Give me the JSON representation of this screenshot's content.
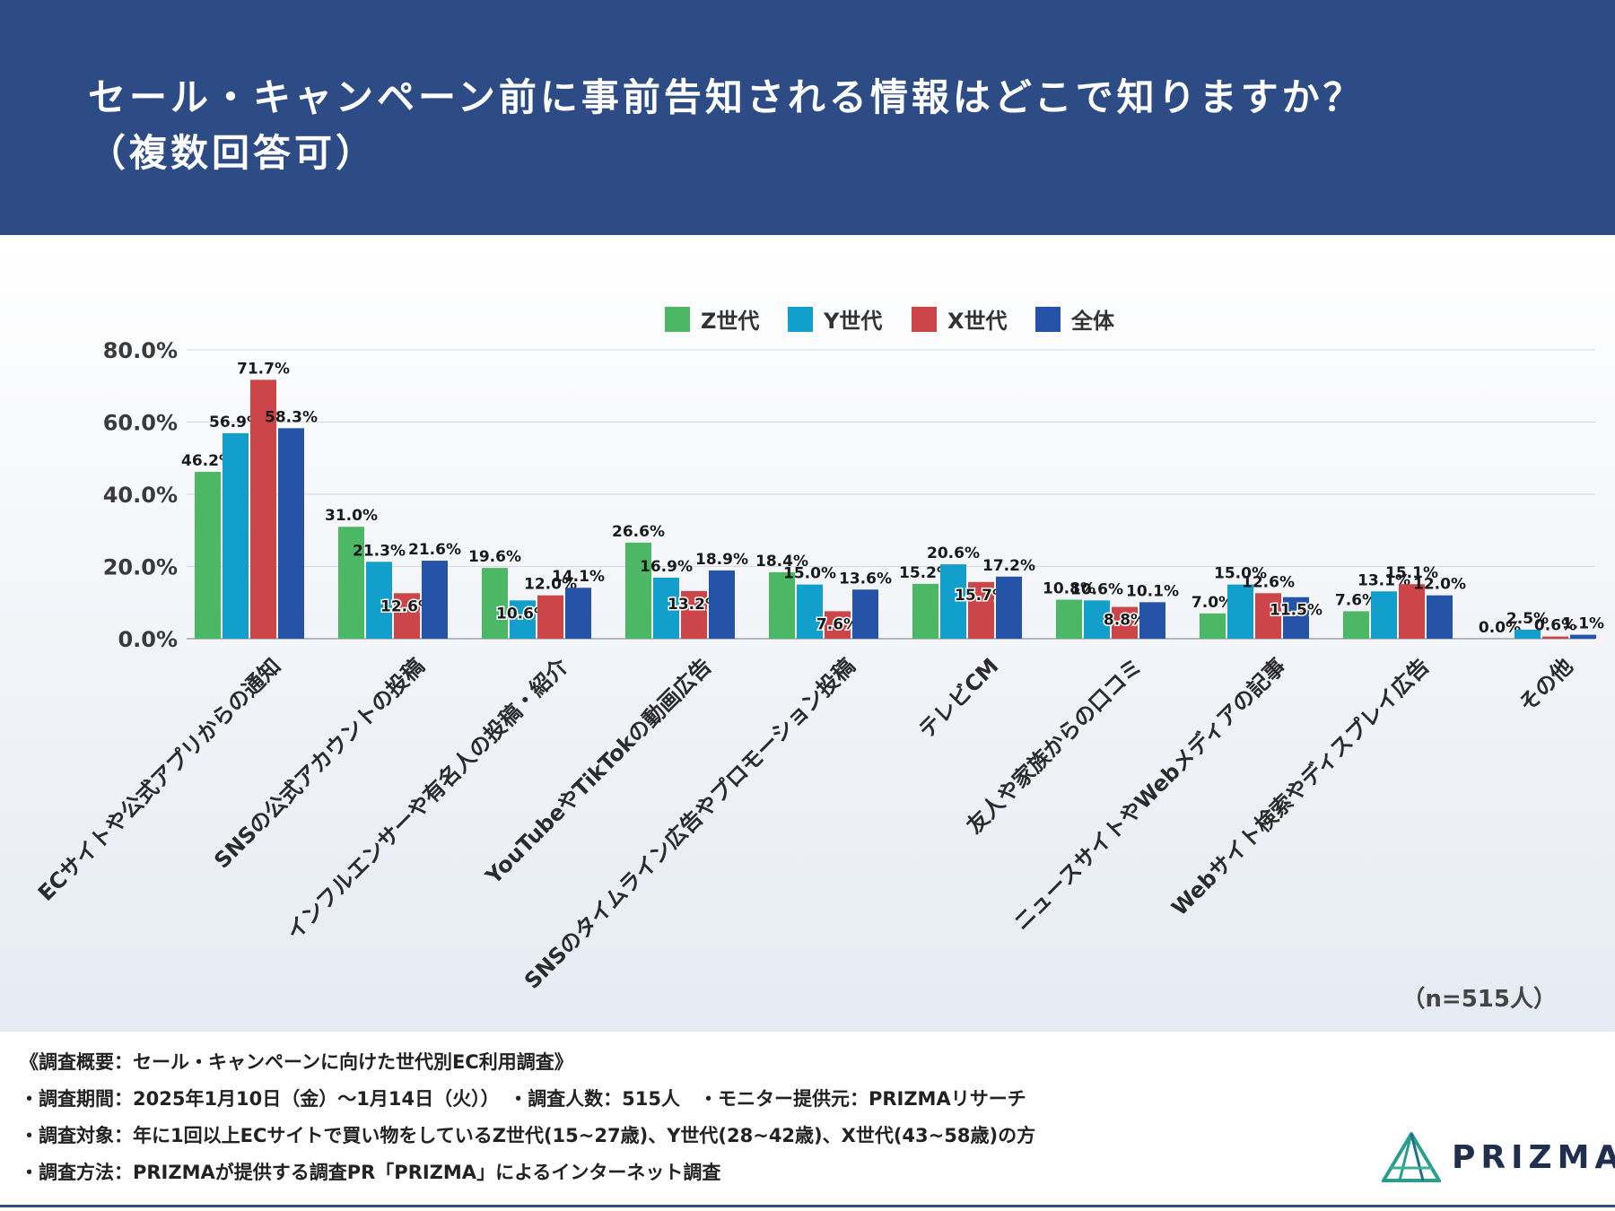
{
  "header": {
    "title_line1": "セール・キャンペーン前に事前告知される情報はどこで知りますか？",
    "title_line2": "（複数回答可）"
  },
  "chart_data": {
    "type": "bar",
    "categories": [
      "ECサイトや公式アプリからの通知",
      "SNSの公式アカウントの投稿",
      "インフルエンサーや有名人の投稿・紹介",
      "YouTubeやTikTokの動画広告",
      "SNSのタイムライン広告やプロモーション投稿",
      "テレビCM",
      "友人や家族からの口コミ",
      "ニュースサイトやWebメディアの記事",
      "Webサイト検索やディスプレイ広告",
      "その他"
    ],
    "series": [
      {
        "name": "Z世代",
        "color": "#4cb865",
        "values": [
          46.2,
          31.0,
          19.6,
          26.6,
          18.4,
          15.2,
          10.8,
          7.0,
          7.6,
          0.0
        ]
      },
      {
        "name": "Y世代",
        "color": "#139fcb",
        "values": [
          56.9,
          21.3,
          10.6,
          16.9,
          15.0,
          20.6,
          10.6,
          15.0,
          13.1,
          2.5
        ]
      },
      {
        "name": "X世代",
        "color": "#cc4548",
        "values": [
          71.7,
          12.6,
          12.0,
          13.2,
          7.6,
          15.7,
          8.8,
          12.6,
          15.1,
          0.6
        ]
      },
      {
        "name": "全体",
        "color": "#2553a8",
        "values": [
          58.3,
          21.6,
          14.1,
          18.9,
          13.6,
          17.2,
          10.1,
          11.5,
          12.0,
          1.1
        ]
      }
    ],
    "label_inside": [
      [
        false,
        false,
        false,
        false
      ],
      [
        false,
        false,
        true,
        false
      ],
      [
        false,
        true,
        false,
        false
      ],
      [
        false,
        false,
        true,
        false
      ],
      [
        false,
        false,
        true,
        false
      ],
      [
        false,
        false,
        true,
        false
      ],
      [
        false,
        false,
        true,
        false
      ],
      [
        false,
        false,
        false,
        true
      ],
      [
        false,
        false,
        false,
        false
      ],
      [
        false,
        false,
        false,
        false
      ]
    ],
    "yticks": [
      "0.0%",
      "20.0%",
      "40.0%",
      "60.0%",
      "80.0%"
    ],
    "ylim": [
      0,
      80
    ],
    "legend_position": "top-center",
    "grid": true,
    "n_label": "（n=515人）"
  },
  "footer": {
    "line1": "《調査概要：セール・キャンペーンに向けた世代別EC利用調査》",
    "line2": "・調査期間：2025年1月10日（金）〜1月14日（火））　・調査人数：515人　・モニター提供元：PRIZMAリサーチ",
    "line3": "・調査対象：年に1回以上ECサイトで買い物をしているZ世代(15~27歳)、Y世代(28~42歳)、X世代(43~58歳)の方",
    "line4": "・調査方法：PRIZMAが提供する調査PR「PRIZMA」によるインターネット調査",
    "logo_text": "PRIZMA"
  }
}
